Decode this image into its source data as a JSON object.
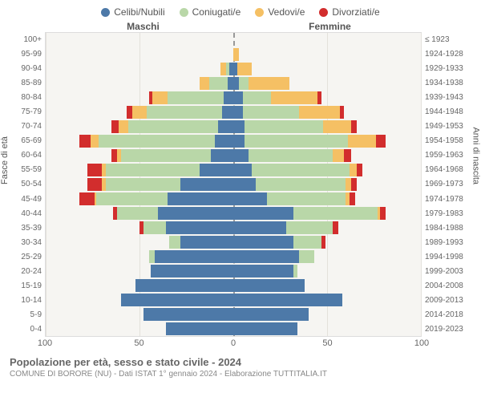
{
  "legend": [
    {
      "label": "Celibi/Nubili",
      "color": "#4d79a8"
    },
    {
      "label": "Coniugati/e",
      "color": "#b9d7a8"
    },
    {
      "label": "Vedovi/e",
      "color": "#f5c064"
    },
    {
      "label": "Divorziati/e",
      "color": "#d22d2d"
    }
  ],
  "headers": {
    "male": "Maschi",
    "female": "Femmine"
  },
  "axis_labels": {
    "left": "Fasce di età",
    "right": "Anni di nascita"
  },
  "footer": {
    "title": "Popolazione per età, sesso e stato civile - 2024",
    "subtitle": "COMUNE DI BORORE (NU) - Dati ISTAT 1° gennaio 2024 - Elaborazione TUTTITALIA.IT"
  },
  "chart": {
    "type": "population-pyramid-stacked",
    "xlim": 100,
    "xticks": [
      100,
      50,
      0,
      50,
      100
    ],
    "background_color": "#f6f5f2",
    "grid_color": "#e3e1db",
    "centerline_color": "#999999",
    "bar_margin_pct": 12,
    "colors": {
      "celibi": "#4d79a8",
      "coniugati": "#b9d7a8",
      "vedovi": "#f5c064",
      "divorziati": "#d22d2d"
    },
    "rows": [
      {
        "age": "100+",
        "birth": "≤ 1923",
        "m": {
          "c": 0,
          "g": 0,
          "v": 0,
          "d": 0
        },
        "f": {
          "c": 0,
          "g": 0,
          "v": 0,
          "d": 0
        }
      },
      {
        "age": "95-99",
        "birth": "1924-1928",
        "m": {
          "c": 0,
          "g": 0,
          "v": 0,
          "d": 0
        },
        "f": {
          "c": 0,
          "g": 0,
          "v": 3,
          "d": 0
        }
      },
      {
        "age": "90-94",
        "birth": "1929-1933",
        "m": {
          "c": 2,
          "g": 2,
          "v": 3,
          "d": 0
        },
        "f": {
          "c": 2,
          "g": 0,
          "v": 8,
          "d": 0
        }
      },
      {
        "age": "85-89",
        "birth": "1934-1938",
        "m": {
          "c": 3,
          "g": 10,
          "v": 5,
          "d": 0
        },
        "f": {
          "c": 3,
          "g": 5,
          "v": 22,
          "d": 0
        }
      },
      {
        "age": "80-84",
        "birth": "1939-1943",
        "m": {
          "c": 5,
          "g": 30,
          "v": 8,
          "d": 2
        },
        "f": {
          "c": 5,
          "g": 15,
          "v": 25,
          "d": 2
        }
      },
      {
        "age": "75-79",
        "birth": "1944-1948",
        "m": {
          "c": 6,
          "g": 40,
          "v": 8,
          "d": 3
        },
        "f": {
          "c": 5,
          "g": 30,
          "v": 22,
          "d": 2
        }
      },
      {
        "age": "70-74",
        "birth": "1949-1953",
        "m": {
          "c": 8,
          "g": 48,
          "v": 5,
          "d": 4
        },
        "f": {
          "c": 6,
          "g": 42,
          "v": 15,
          "d": 3
        }
      },
      {
        "age": "65-69",
        "birth": "1954-1958",
        "m": {
          "c": 10,
          "g": 62,
          "v": 4,
          "d": 6
        },
        "f": {
          "c": 6,
          "g": 55,
          "v": 15,
          "d": 5
        }
      },
      {
        "age": "60-64",
        "birth": "1959-1963",
        "m": {
          "c": 12,
          "g": 48,
          "v": 2,
          "d": 3
        },
        "f": {
          "c": 8,
          "g": 45,
          "v": 6,
          "d": 4
        }
      },
      {
        "age": "55-59",
        "birth": "1964-1968",
        "m": {
          "c": 18,
          "g": 50,
          "v": 2,
          "d": 8
        },
        "f": {
          "c": 10,
          "g": 52,
          "v": 4,
          "d": 3
        }
      },
      {
        "age": "50-54",
        "birth": "1969-1973",
        "m": {
          "c": 28,
          "g": 40,
          "v": 2,
          "d": 8
        },
        "f": {
          "c": 12,
          "g": 48,
          "v": 3,
          "d": 3
        }
      },
      {
        "age": "45-49",
        "birth": "1974-1978",
        "m": {
          "c": 35,
          "g": 38,
          "v": 1,
          "d": 8
        },
        "f": {
          "c": 18,
          "g": 42,
          "v": 2,
          "d": 3
        }
      },
      {
        "age": "40-44",
        "birth": "1979-1983",
        "m": {
          "c": 40,
          "g": 22,
          "v": 0,
          "d": 2
        },
        "f": {
          "c": 32,
          "g": 45,
          "v": 1,
          "d": 3
        }
      },
      {
        "age": "35-39",
        "birth": "1984-1988",
        "m": {
          "c": 36,
          "g": 12,
          "v": 0,
          "d": 2
        },
        "f": {
          "c": 28,
          "g": 25,
          "v": 0,
          "d": 3
        }
      },
      {
        "age": "30-34",
        "birth": "1989-1993",
        "m": {
          "c": 28,
          "g": 6,
          "v": 0,
          "d": 0
        },
        "f": {
          "c": 32,
          "g": 15,
          "v": 0,
          "d": 2
        }
      },
      {
        "age": "25-29",
        "birth": "1994-1998",
        "m": {
          "c": 42,
          "g": 3,
          "v": 0,
          "d": 0
        },
        "f": {
          "c": 35,
          "g": 8,
          "v": 0,
          "d": 0
        }
      },
      {
        "age": "20-24",
        "birth": "1999-2003",
        "m": {
          "c": 44,
          "g": 0,
          "v": 0,
          "d": 0
        },
        "f": {
          "c": 32,
          "g": 2,
          "v": 0,
          "d": 0
        }
      },
      {
        "age": "15-19",
        "birth": "2004-2008",
        "m": {
          "c": 52,
          "g": 0,
          "v": 0,
          "d": 0
        },
        "f": {
          "c": 38,
          "g": 0,
          "v": 0,
          "d": 0
        }
      },
      {
        "age": "10-14",
        "birth": "2009-2013",
        "m": {
          "c": 60,
          "g": 0,
          "v": 0,
          "d": 0
        },
        "f": {
          "c": 58,
          "g": 0,
          "v": 0,
          "d": 0
        }
      },
      {
        "age": "5-9",
        "birth": "2014-2018",
        "m": {
          "c": 48,
          "g": 0,
          "v": 0,
          "d": 0
        },
        "f": {
          "c": 40,
          "g": 0,
          "v": 0,
          "d": 0
        }
      },
      {
        "age": "0-4",
        "birth": "2019-2023",
        "m": {
          "c": 36,
          "g": 0,
          "v": 0,
          "d": 0
        },
        "f": {
          "c": 34,
          "g": 0,
          "v": 0,
          "d": 0
        }
      }
    ]
  }
}
